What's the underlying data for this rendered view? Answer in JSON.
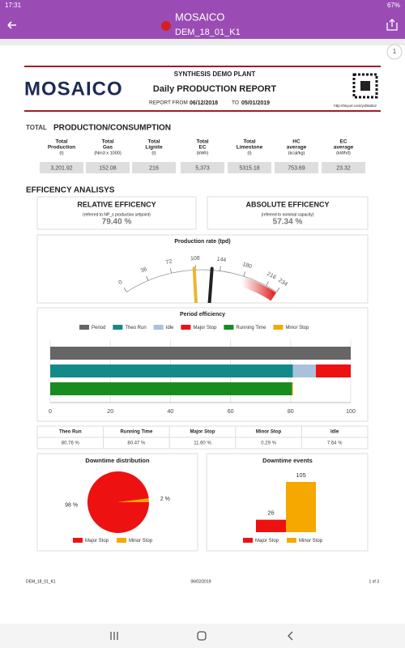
{
  "status_bar": {
    "time": "17:31",
    "battery": "67%"
  },
  "app_bar": {
    "title": "MOSAICO",
    "subtitle": "DEM_18_01_K1",
    "page_badge": "1"
  },
  "report": {
    "logo": "MOSAICO",
    "plant": "SYNTHESIS DEMO PLANT",
    "title": "Daily PRODUCTION REPORT",
    "from_label": "REPORT FROM",
    "from": "06/12/2018",
    "to_label": "TO",
    "to": "05/01/2019",
    "url": "http://tinyurl.com/ycbks8xz"
  },
  "totals": {
    "title_prefix": "TOTAL",
    "title": "PRODUCTION/CONSUMPTION",
    "columns": [
      {
        "label": [
          "Total",
          "Production",
          "(t)"
        ],
        "value": "3,201.92"
      },
      {
        "label": [
          "Total",
          "Gas",
          "(Nm3 x 1000)"
        ],
        "value": "152.08"
      },
      {
        "label": [
          "Total",
          "Lignite",
          "(t)"
        ],
        "value": "216"
      },
      {
        "label": [
          "Total",
          "EC",
          "(kWh)"
        ],
        "value": "5,373"
      },
      {
        "label": [
          "Total",
          "Limestone",
          "(t)"
        ],
        "value": "5315.18"
      },
      {
        "label": [
          "HC",
          "average",
          "(kcal/kg)"
        ],
        "value": "753.69"
      },
      {
        "label": [
          "EC",
          "average",
          "(kWh/t)"
        ],
        "value": "23.32"
      }
    ]
  },
  "efficiency": {
    "title": "EFFICENCY ANALISYS",
    "relative": {
      "title": "RELATIVE EFFICENCY",
      "note": "(referred to NP_s production setpoint)",
      "value": "79.40 %"
    },
    "absolute": {
      "title": "ABSOLUTE EFFICENCY",
      "note": "(referred to nominal capacity)",
      "value": "57.34 %"
    }
  },
  "chart_data": [
    {
      "type": "gauge",
      "title": "Production rate (tpd)",
      "xlim": [
        0,
        234
      ],
      "xticks": [
        0,
        36,
        72,
        108,
        144,
        180,
        216,
        234
      ],
      "needles": [
        {
          "color": "#e8b830",
          "value": 106
        },
        {
          "color": "#222222",
          "value": 132
        }
      ],
      "bands": [
        {
          "from": 180,
          "to": 234,
          "color": "#e02b2b"
        }
      ]
    },
    {
      "type": "stacked-bar",
      "title": "Period efficiency",
      "categories": [
        null,
        null,
        null
      ],
      "xlim": [
        0,
        100
      ],
      "xticks": [
        0,
        20,
        40,
        60,
        80,
        100
      ],
      "grid": true,
      "series": [
        {
          "name": "Period",
          "color": "#666666",
          "values": [
            100,
            null,
            null
          ]
        },
        {
          "name": "Theo Run",
          "color": "#138a87",
          "values": [
            null,
            80.76,
            null
          ]
        },
        {
          "name": "Idle",
          "color": "#a8c2dd",
          "values": [
            null,
            7.64,
            null
          ]
        },
        {
          "name": "Major Stop",
          "color": "#ee1111",
          "values": [
            null,
            11.6,
            null
          ]
        },
        {
          "name": "Running Time",
          "color": "#198c1f",
          "values": [
            null,
            null,
            80.47
          ]
        },
        {
          "name": "Minor Stop",
          "color": "#f5a800",
          "values": [
            null,
            null,
            0.29
          ]
        }
      ]
    },
    {
      "type": "pie",
      "title": "Downtime distribution",
      "categories": [
        "Major Stop",
        "Minor Stop"
      ],
      "values": [
        98,
        2
      ],
      "value_labels": [
        "98 %",
        "2 %"
      ],
      "colors": [
        "#ee1111",
        "#f5a800"
      ]
    },
    {
      "type": "bar",
      "title": "Downtime events",
      "categories": [
        "Major Stop",
        "Minor Stop"
      ],
      "values": [
        26,
        105
      ],
      "colors": [
        "#ee1111",
        "#f5a800"
      ]
    }
  ],
  "summary_table": {
    "headers": [
      "Theo Run",
      "Running Time",
      "Major Stop",
      "Minor Stop",
      "Idle"
    ],
    "values": [
      "80.76 %",
      "80.47 %",
      "11.60 %",
      "0.29 %",
      "7.64 %"
    ]
  },
  "footer": {
    "left": "DEM_18_01_K1",
    "center": "06/02/2019",
    "right": "1 of 3"
  }
}
